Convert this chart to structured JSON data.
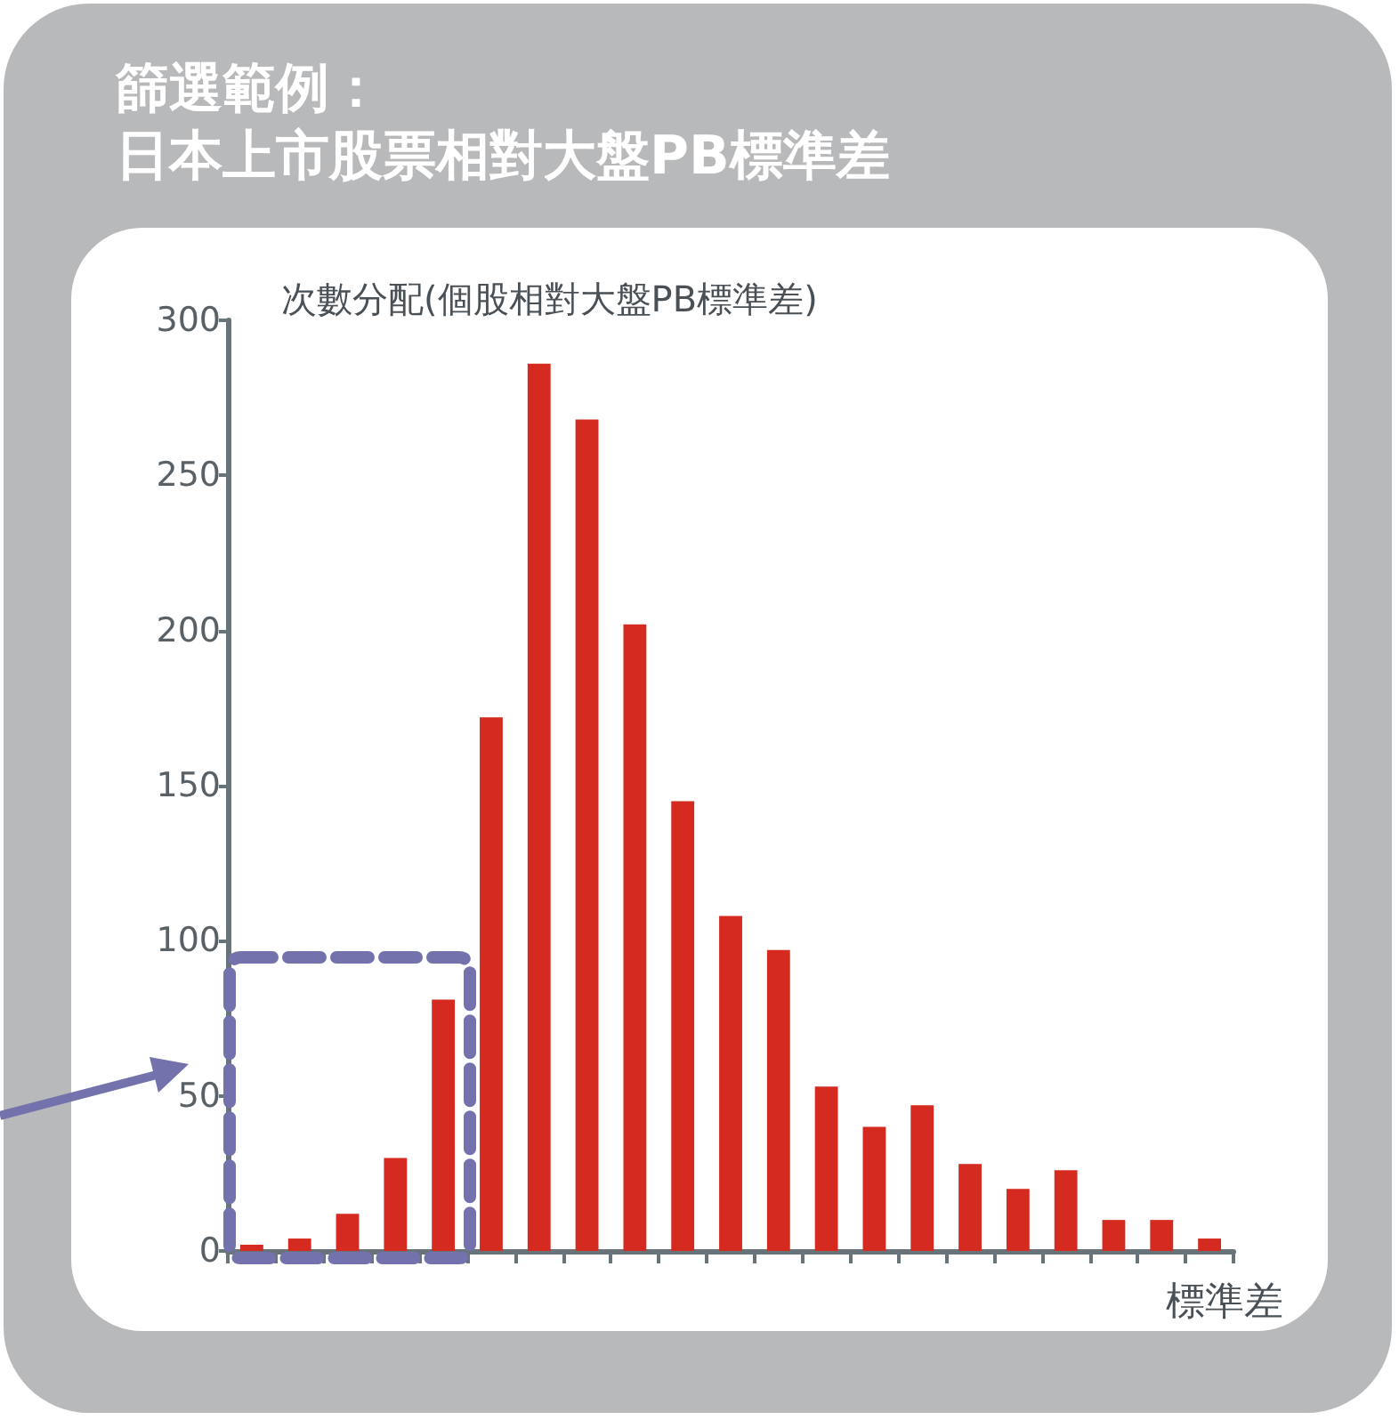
{
  "chart_data": {
    "type": "bar",
    "title": "篩選範例：",
    "subtitle": "日本上市股票相對大盤PB標準差",
    "ylabel": "次數分配(個股相對大盤PB標準差)",
    "xlabel": "標準差",
    "categories": [
      null,
      null,
      null,
      null,
      null,
      null,
      null,
      null,
      null,
      null,
      null,
      null,
      null,
      null,
      null,
      null,
      null,
      null,
      null,
      null,
      null
    ],
    "values": [
      2,
      4,
      12,
      30,
      81,
      172,
      286,
      268,
      202,
      145,
      108,
      97,
      53,
      40,
      47,
      28,
      20,
      26,
      10,
      10,
      4
    ],
    "color": "#d42a1f",
    "ylim": [
      0,
      300
    ],
    "yticks": [
      0,
      50,
      100,
      150,
      200,
      250,
      300
    ],
    "tick_labels": "y"
  }
}
